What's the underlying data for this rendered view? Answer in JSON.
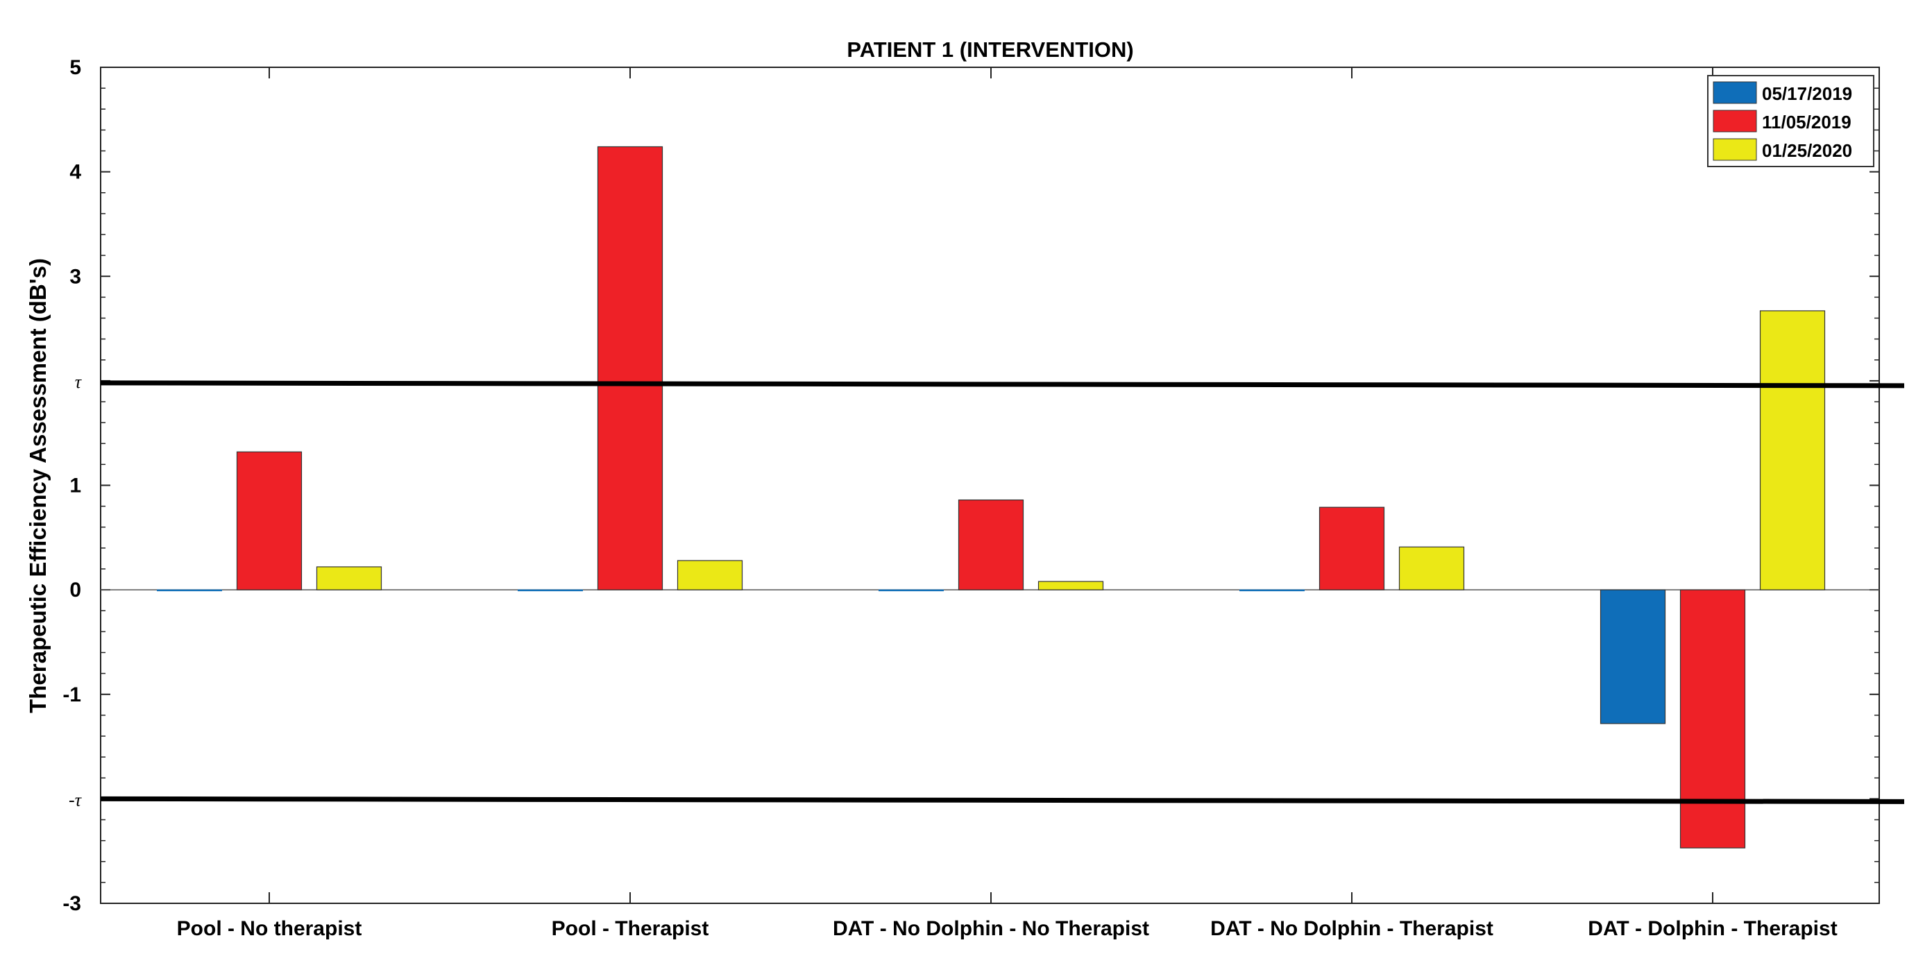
{
  "chart_data": {
    "type": "bar",
    "title": "PATIENT 1 (INTERVENTION)",
    "xlabel": "",
    "ylabel": "Therapeutic Efficiency Assessment (dB's)",
    "ylim": [
      -3,
      5
    ],
    "yticks": [
      {
        "value": 5,
        "label": "5"
      },
      {
        "value": 4,
        "label": "4"
      },
      {
        "value": 3,
        "label": "3"
      },
      {
        "value": 2,
        "label": "τ"
      },
      {
        "value": 1,
        "label": "1"
      },
      {
        "value": 0,
        "label": "0"
      },
      {
        "value": -1,
        "label": "-1"
      },
      {
        "value": -2,
        "label": "-τ"
      },
      {
        "value": -3,
        "label": "-3"
      }
    ],
    "categories": [
      "Pool - No therapist",
      "Pool - Therapist",
      "DAT - No Dolphin - No Therapist",
      "DAT - No Dolphin - Therapist",
      "DAT -  Dolphin - Therapist"
    ],
    "series": [
      {
        "name": "05/17/2019",
        "color": "#0F6EB9",
        "values": [
          0,
          0,
          0,
          0,
          -1.28
        ]
      },
      {
        "name": "11/05/2019",
        "color": "#EE2127",
        "values": [
          1.32,
          4.24,
          0.86,
          0.79,
          -2.47
        ]
      },
      {
        "name": "01/25/2020",
        "color": "#EBE816",
        "values": [
          0.22,
          0.28,
          0.08,
          0.41,
          2.67
        ]
      }
    ],
    "reference_lines": [
      {
        "label": "τ",
        "value": 1.98
      },
      {
        "label": "-τ",
        "value": -2.0
      }
    ],
    "grid": false,
    "legend_position": "top-right"
  }
}
